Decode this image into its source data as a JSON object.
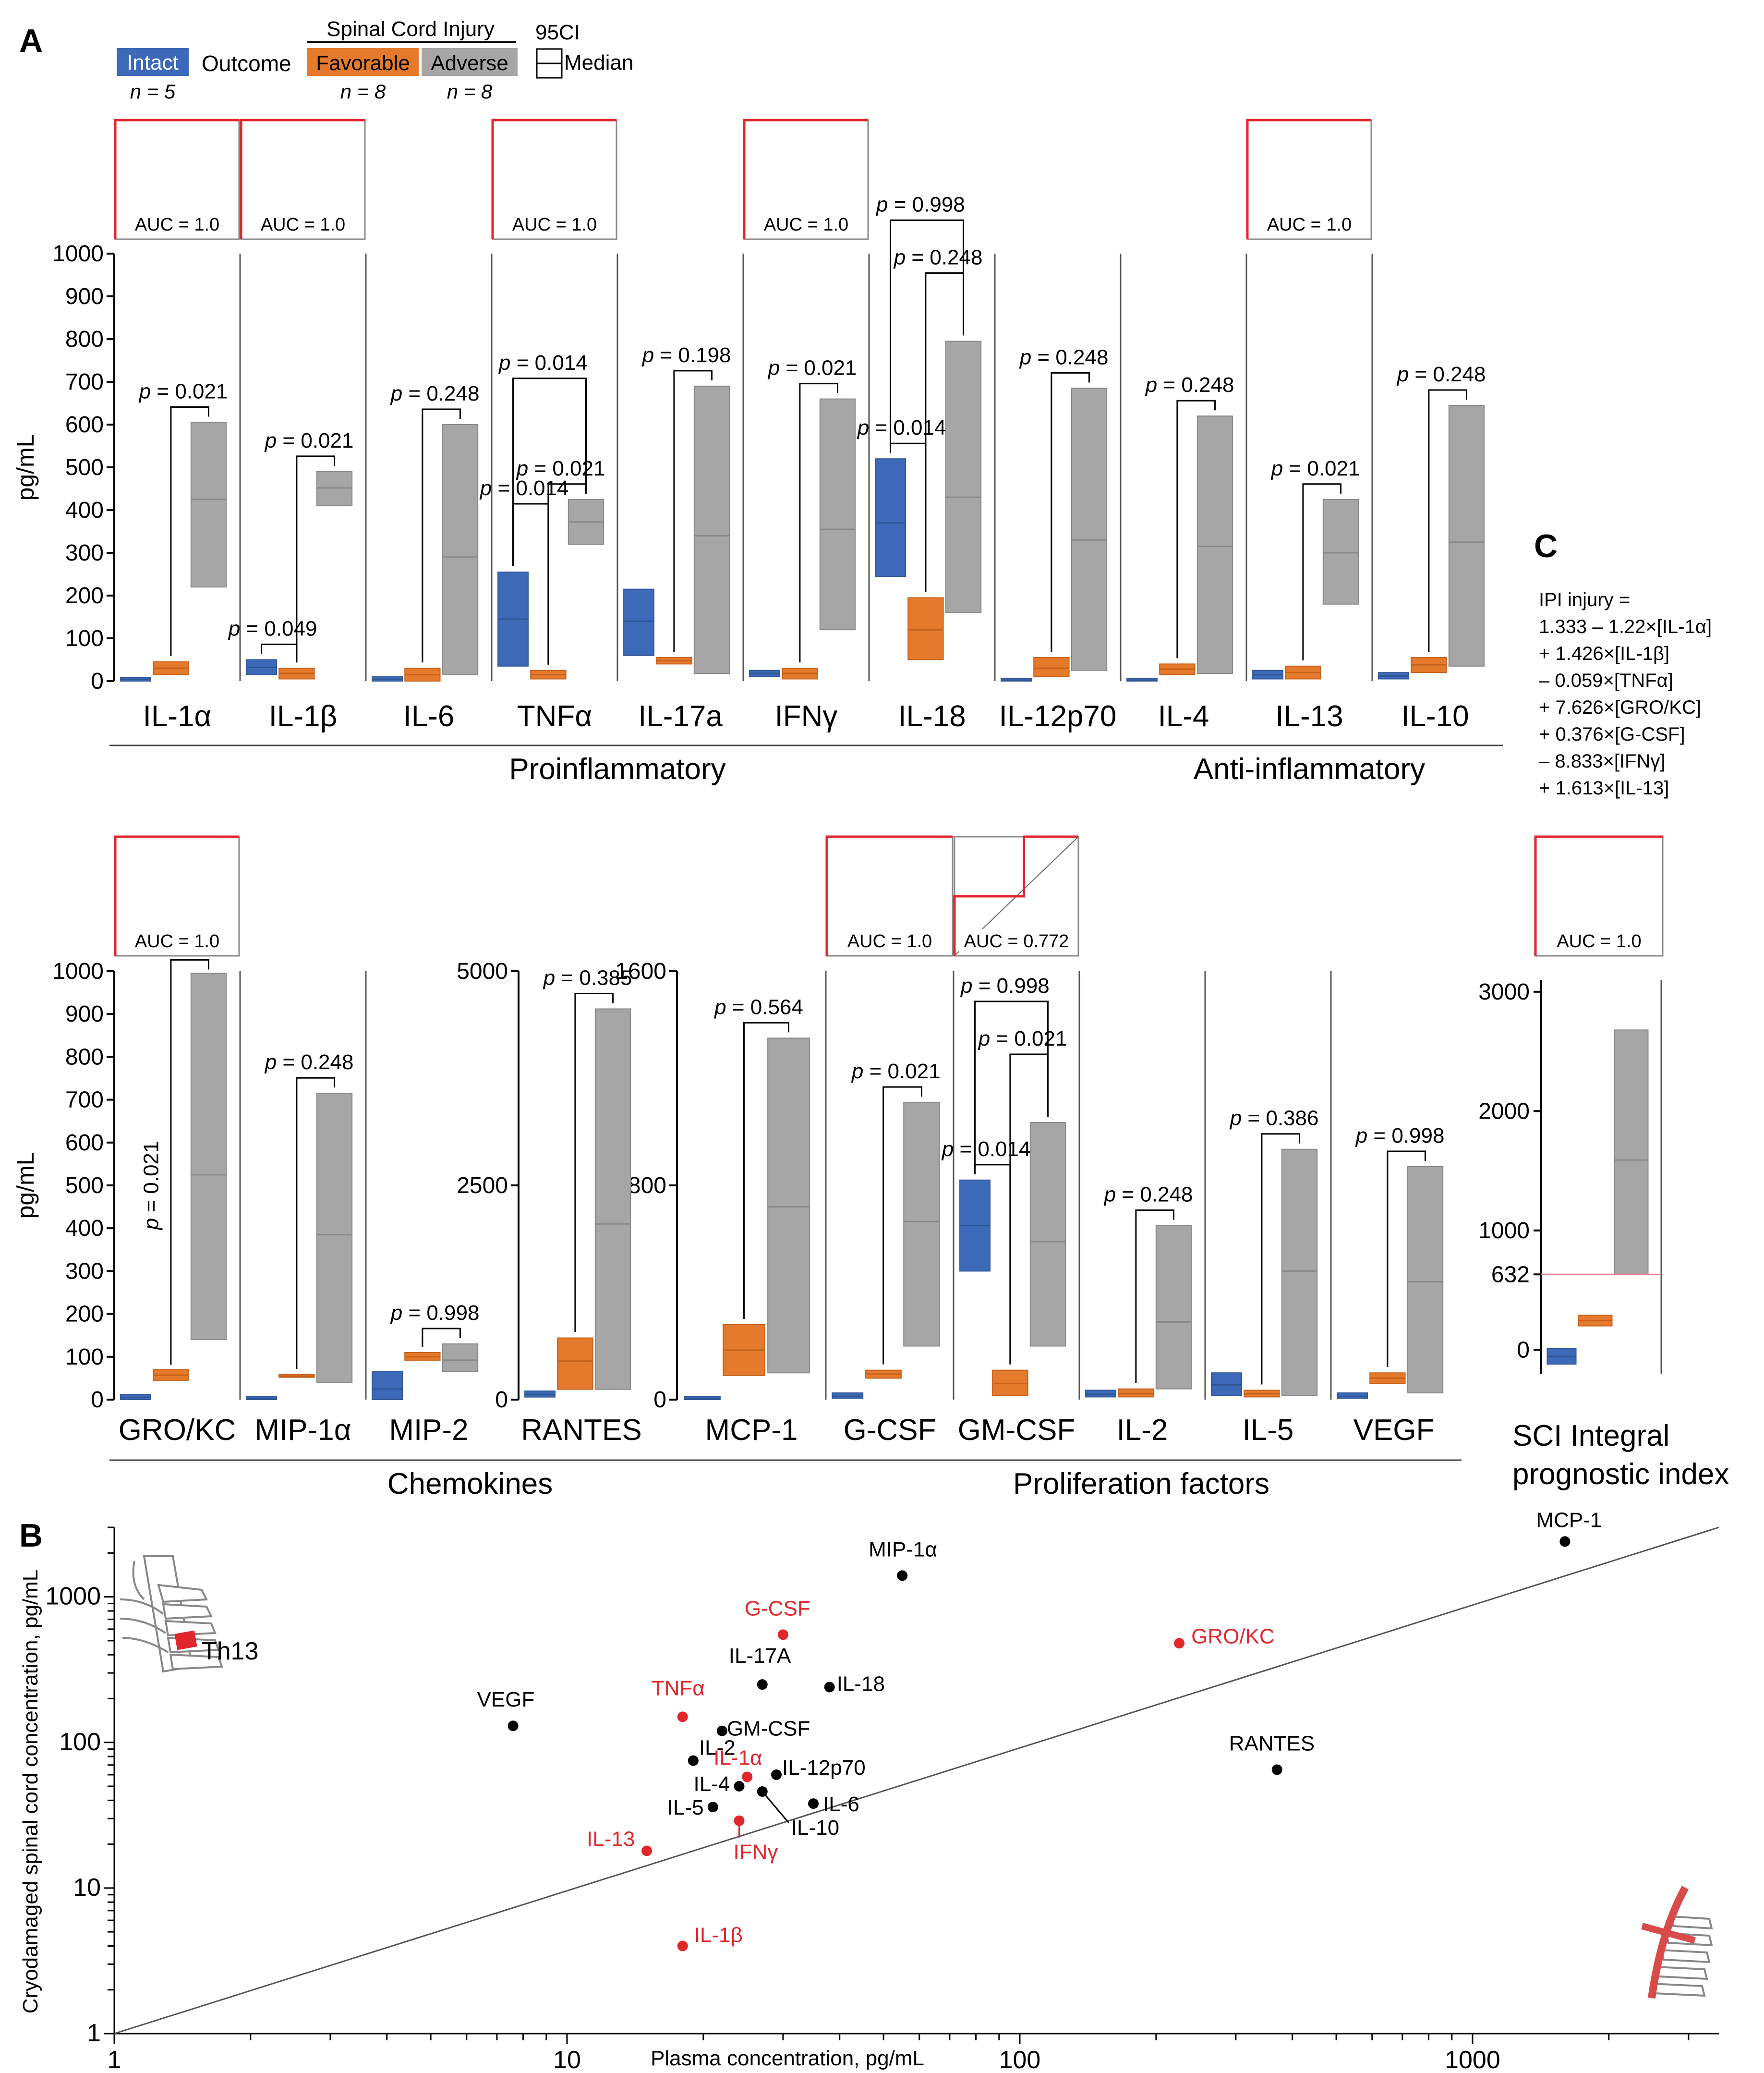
{
  "colors": {
    "intact": "#3d6ab8",
    "favorable": "#e57a2c",
    "adverse": "#a6a6a6",
    "roc": "#e1262c",
    "scatter_red": "#e1262c",
    "scatter_black": "#000000",
    "threshold": "#e8818a"
  },
  "panel_labels": {
    "a": "A",
    "b": "B",
    "c": "C"
  },
  "legend": {
    "intact_label": "Intact",
    "intact_n": "n = 5",
    "outcome_label": "Outcome",
    "sci_header": "Spinal Cord Injury",
    "favorable_label": "Favorable",
    "favorable_n": "n = 8",
    "adverse_label": "Adverse",
    "adverse_n": "n = 8",
    "ci_label": "95CI",
    "median_label": "Median"
  },
  "chart_data": [
    {
      "type": "box-range",
      "panel": "A-top",
      "ylabel": "pg/mL",
      "yticks": [
        "0",
        "100",
        "200",
        "300",
        "400",
        "500",
        "600",
        "700",
        "800",
        "900",
        "1000"
      ],
      "ylim": [
        0,
        1000
      ],
      "groups": [
        {
          "label": "Proinflammatory",
          "members": [
            "IL-1α",
            "IL-1β",
            "IL-6",
            "TNFα",
            "IL-17a",
            "IFNγ",
            "IL-18",
            "IL-12p70"
          ]
        },
        {
          "label": "Anti-inflammatory",
          "members": [
            "IL-4",
            "IL-13",
            "IL-10"
          ]
        }
      ],
      "cytokines": [
        {
          "name": "IL-1α",
          "auc": "AUC = 1.0",
          "boxes": [
            [
              0,
              8,
              4
            ],
            [
              15,
              45,
              30
            ],
            [
              220,
              605,
              425
            ]
          ],
          "pvals": [
            {
              "text": "p = 0.021",
              "pair": [
                1,
                2
              ],
              "level": 0
            }
          ]
        },
        {
          "name": "IL-1β",
          "auc": "AUC = 1.0",
          "boxes": [
            [
              15,
              50,
              32
            ],
            [
              5,
              30,
              18
            ],
            [
              410,
              490,
              452
            ]
          ],
          "pvals": [
            {
              "text": "p = 0.049",
              "pair": [
                0,
                1
              ],
              "level": 0
            },
            {
              "text": "p = 0.021",
              "pair": [
                1,
                2
              ],
              "level": 0
            }
          ]
        },
        {
          "name": "IL-6",
          "auc": null,
          "boxes": [
            [
              0,
              10,
              4
            ],
            [
              0,
              30,
              15
            ],
            [
              15,
              600,
              290
            ]
          ],
          "pvals": [
            {
              "text": "p = 0.248",
              "pair": [
                1,
                2
              ],
              "level": 0
            }
          ]
        },
        {
          "name": "TNFα",
          "auc": "AUC = 1.0",
          "boxes": [
            [
              35,
              255,
              145
            ],
            [
              5,
              25,
              15
            ],
            [
              320,
              425,
              372
            ]
          ],
          "pvals": [
            {
              "text": "p = 0.021",
              "pair": [
                1,
                2
              ],
              "level": 0
            },
            {
              "text": "p = 0.014",
              "pair": [
                0,
                1
              ],
              "level": 1
            },
            {
              "text": "p = 0.014",
              "pair": [
                0,
                2
              ],
              "level": 2
            }
          ]
        },
        {
          "name": "IL-17a",
          "auc": null,
          "boxes": [
            [
              60,
              215,
              140
            ],
            [
              40,
              55,
              48
            ],
            [
              18,
              690,
              340
            ]
          ],
          "pvals": [
            {
              "text": "p = 0.198",
              "pair": [
                1,
                2
              ],
              "level": 0
            }
          ]
        },
        {
          "name": "IFNγ",
          "auc": "AUC = 1.0",
          "boxes": [
            [
              10,
              25,
              18
            ],
            [
              5,
              30,
              18
            ],
            [
              120,
              660,
              355
            ]
          ],
          "pvals": [
            {
              "text": "p = 0.021",
              "pair": [
                1,
                2
              ],
              "level": 0
            }
          ]
        },
        {
          "name": "IL-18",
          "auc": null,
          "boxes": [
            [
              245,
              520,
              370
            ],
            [
              50,
              195,
              120
            ],
            [
              160,
              795,
              430
            ]
          ],
          "pvals": [
            {
              "text": "p = 0.014",
              "pair": [
                0,
                1
              ],
              "level": 0
            },
            {
              "text": "p = 0.248",
              "pair": [
                1,
                2
              ],
              "level": 1
            },
            {
              "text": "p = 0.998",
              "pair": [
                0,
                2
              ],
              "level": 2
            }
          ]
        },
        {
          "name": "IL-12p70",
          "auc": null,
          "boxes": [
            [
              0,
              5,
              2
            ],
            [
              10,
              55,
              30
            ],
            [
              25,
              685,
              330
            ]
          ],
          "pvals": [
            {
              "text": "p = 0.248",
              "pair": [
                1,
                2
              ],
              "level": 0
            }
          ]
        },
        {
          "name": "IL-4",
          "auc": null,
          "boxes": [
            [
              0,
              5,
              2
            ],
            [
              15,
              40,
              28
            ],
            [
              18,
              620,
              315
            ]
          ],
          "pvals": [
            {
              "text": "p = 0.248",
              "pair": [
                1,
                2
              ],
              "level": 0
            }
          ]
        },
        {
          "name": "IL-13",
          "auc": "AUC = 1.0",
          "boxes": [
            [
              5,
              25,
              15
            ],
            [
              5,
              35,
              20
            ],
            [
              180,
              425,
              300
            ]
          ],
          "pvals": [
            {
              "text": "p = 0.021",
              "pair": [
                1,
                2
              ],
              "level": 0
            }
          ]
        },
        {
          "name": "IL-10",
          "auc": null,
          "boxes": [
            [
              5,
              20,
              12
            ],
            [
              20,
              55,
              38
            ],
            [
              35,
              645,
              325
            ]
          ],
          "pvals": [
            {
              "text": "p = 0.248",
              "pair": [
                1,
                2
              ],
              "level": 0
            }
          ]
        }
      ]
    },
    {
      "type": "box-range",
      "panel": "A-bottom",
      "ylabel": "pg/mL",
      "groups": [
        {
          "label": "Chemokines",
          "members": [
            "GRO/KC",
            "MIP-1α",
            "MIP-2",
            "RANTES",
            "MCP-1"
          ]
        },
        {
          "label": "Proliferation factors",
          "members": [
            "G-CSF",
            "GM-CSF",
            "IL-2",
            "IL-5",
            "VEGF"
          ]
        }
      ],
      "cytokines": [
        {
          "name": "GRO/KC",
          "auc": "AUC = 1.0",
          "boxes": [
            [
              0,
              12,
              5
            ],
            [
              45,
              70,
              57
            ],
            [
              140,
              995,
              525
            ]
          ],
          "pvals": [
            {
              "text": "p = 0.021",
              "pair": [
                1,
                2
              ],
              "level": 0,
              "vertical": true
            }
          ]
        },
        {
          "name": "MIP-1α",
          "auc": null,
          "boxes": [
            [
              0,
              5,
              2
            ],
            [
              52,
              58,
              55
            ],
            [
              40,
              715,
              385
            ]
          ],
          "pvals": [
            {
              "text": "p = 0.248",
              "pair": [
                1,
                2
              ],
              "level": 0
            }
          ]
        },
        {
          "name": "MIP-2",
          "auc": null,
          "boxes": [
            [
              0,
              65,
              25
            ],
            [
              92,
              110,
              100
            ],
            [
              65,
              130,
              92
            ]
          ],
          "pvals": [
            {
              "text": "p = 0.998",
              "pair": [
                1,
                2
              ],
              "level": 0
            }
          ]
        },
        {
          "name": "RANTES",
          "auc": null,
          "boxes": [
            [
              30,
              100,
              60
            ],
            [
              120,
              720,
              450
            ],
            [
              120,
              4560,
              2050
            ]
          ],
          "pvals": [
            {
              "text": "p = 0.385",
              "pair": [
                1,
                2
              ],
              "level": 0
            }
          ]
        },
        {
          "name": "MCP-1",
          "auc": null,
          "boxes": [
            [
              0,
              10,
              3
            ],
            [
              90,
              280,
              185
            ],
            [
              100,
              1350,
              720
            ]
          ],
          "pvals": [
            {
              "text": "p = 0.564",
              "pair": [
                1,
                2
              ],
              "level": 0
            }
          ]
        },
        {
          "name": "G-CSF",
          "auc": "AUC = 1.0",
          "boxes": [
            [
              5,
              25,
              12
            ],
            [
              80,
              110,
              95
            ],
            [
              200,
              1110,
              665
            ]
          ],
          "pvals": [
            {
              "text": "p = 0.021",
              "pair": [
                1,
                2
              ],
              "level": 0
            }
          ]
        },
        {
          "name": "GM-CSF",
          "auc": "AUC = 0.772",
          "boxes": [
            [
              480,
              820,
              650
            ],
            [
              15,
              110,
              60
            ],
            [
              200,
              1035,
              590
            ]
          ],
          "pvals": [
            {
              "text": "p = 0.014",
              "pair": [
                0,
                1
              ],
              "level": 0
            },
            {
              "text": "p = 0.021",
              "pair": [
                1,
                2
              ],
              "level": 1
            },
            {
              "text": "p = 0.998",
              "pair": [
                0,
                2
              ],
              "level": 2
            }
          ]
        },
        {
          "name": "IL-2",
          "auc": null,
          "boxes": [
            [
              10,
              35,
              20
            ],
            [
              10,
              40,
              22
            ],
            [
              40,
              650,
              290
            ]
          ],
          "pvals": [
            {
              "text": "p = 0.248",
              "pair": [
                1,
                2
              ],
              "level": 0
            }
          ]
        },
        {
          "name": "IL-5",
          "auc": null,
          "boxes": [
            [
              15,
              100,
              55
            ],
            [
              10,
              35,
              22
            ],
            [
              15,
              935,
              480
            ]
          ],
          "pvals": [
            {
              "text": "p = 0.386",
              "pair": [
                1,
                2
              ],
              "level": 0
            }
          ]
        },
        {
          "name": "VEGF",
          "auc": null,
          "boxes": [
            [
              5,
              25,
              12
            ],
            [
              60,
              100,
              80
            ],
            [
              25,
              870,
              440
            ]
          ],
          "pvals": [
            {
              "text": "p = 0.998",
              "pair": [
                1,
                2
              ],
              "level": 0
            }
          ]
        }
      ]
    },
    {
      "type": "box-range",
      "panel": "C",
      "title": "IPI injury =",
      "equation": [
        "1.333 – 1.22×[IL-1α]",
        "+ 1.426×[IL-1β]",
        "– 0.059×[TNFα]",
        "+ 7.626×[GRO/KC]",
        "+ 0.376×[G-CSF]",
        "– 8.833×[IFNγ]",
        "+ 1.613×[IL-13]"
      ],
      "auc": "AUC = 1.0",
      "yticks": [
        "0",
        "632",
        "1000",
        "2000",
        "3000"
      ],
      "boxes": [
        [
          -120,
          10,
          -55
        ],
        [
          200,
          290,
          245
        ],
        [
          632,
          2680,
          1590
        ]
      ],
      "threshold": 632,
      "xlabel_lines": [
        "SCI Integral",
        "prognostic index"
      ]
    },
    {
      "type": "scatter",
      "panel": "B",
      "xlabel": "Plasma concentration, pg/mL",
      "ylabel": "Cryodamaged spinal cord concentration, pg/mL",
      "xscale": "log",
      "yscale": "log",
      "xlim": [
        1,
        3500
      ],
      "ylim": [
        1,
        3000
      ],
      "xticks": [
        "1",
        "10",
        "100",
        "1000"
      ],
      "yticks": [
        "1",
        "10",
        "100",
        "1000"
      ],
      "diagonal": "y = x",
      "annotations": {
        "th13": "Th13"
      },
      "points": [
        {
          "label": "MCP-1",
          "x": 1600,
          "y": 2400,
          "red": false
        },
        {
          "label": "MIP-1α",
          "x": 55,
          "y": 1400,
          "red": false
        },
        {
          "label": "G-CSF",
          "x": 30,
          "y": 550,
          "red": true
        },
        {
          "label": "GRO/KC",
          "x": 225,
          "y": 480,
          "red": true
        },
        {
          "label": "IL-17A",
          "x": 27,
          "y": 250,
          "red": false
        },
        {
          "label": "IL-18",
          "x": 38,
          "y": 240,
          "red": false
        },
        {
          "label": "VEGF",
          "x": 7.6,
          "y": 130,
          "red": false
        },
        {
          "label": "TNFα",
          "x": 18,
          "y": 150,
          "red": true
        },
        {
          "label": "GM-CSF",
          "x": 22,
          "y": 120,
          "red": false
        },
        {
          "label": "IL-2",
          "x": 19,
          "y": 75,
          "red": false
        },
        {
          "label": "IL-12p70",
          "x": 29,
          "y": 60,
          "red": false
        },
        {
          "label": "IL-1α",
          "x": 25,
          "y": 58,
          "red": true
        },
        {
          "label": "IL-4",
          "x": 24,
          "y": 50,
          "red": false
        },
        {
          "label": "IL-10",
          "x": 27,
          "y": 46,
          "red": false
        },
        {
          "label": "IL-5",
          "x": 21,
          "y": 36,
          "red": false
        },
        {
          "label": "IL-6",
          "x": 35,
          "y": 38,
          "red": false
        },
        {
          "label": "IFNγ",
          "x": 24,
          "y": 29,
          "red": true
        },
        {
          "label": "IL-13",
          "x": 15,
          "y": 18,
          "red": true
        },
        {
          "label": "RANTES",
          "x": 370,
          "y": 65,
          "red": false
        },
        {
          "label": "IL-1β",
          "x": 18,
          "y": 4,
          "red": true
        }
      ]
    }
  ]
}
